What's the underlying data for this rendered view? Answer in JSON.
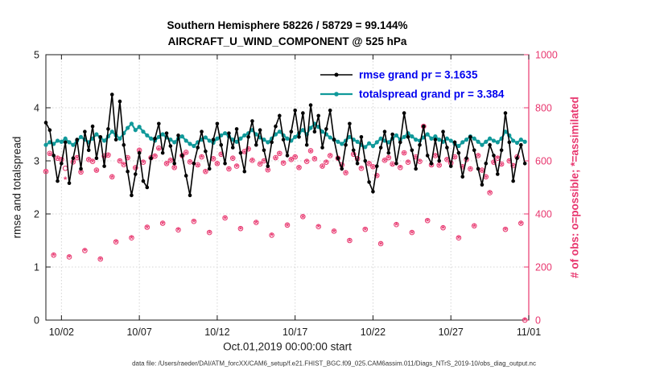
{
  "page": {
    "title_line1": "Southern Hemisphere 58226 / 58729 = 99.144%",
    "title_line2": "AIRCRAFT_U_WIND_COMPONENT @ 525 hPa",
    "xlabel": "Oct.01,2019 00:00:00 start",
    "ylabel_left": "rmse and totalspread",
    "ylabel_right": "# of obs: o=possible; *=assimilated",
    "footer": "data file: /Users/raeder/DAI/ATM_forcXX/CAM6_setup/f.e21.FHIST_BGC.f09_025.CAM6assim.011/Diags_NTrS_2019-10/obs_diag_output.nc"
  },
  "chart_data": {
    "type": "line",
    "title": "Southern Hemisphere 58226 / 58729 = 99.144%",
    "subtitle": "AIRCRAFT_U_WIND_COMPONENT @ 525 hPa",
    "xlabel": "Oct.01,2019 00:00:00 start",
    "ylabel_left": "rmse and totalspread",
    "ylabel_right": "# of obs: o=possible; *=assimilated",
    "x_start_day": 0.0,
    "x_step_days": 0.25,
    "xlim": [
      0,
      31
    ],
    "ylim_left": [
      0,
      5
    ],
    "ylim_right": [
      0,
      1000
    ],
    "grid": true,
    "legend_position": "upper-center-right",
    "xticks": [
      {
        "t": 1,
        "label": "10/02"
      },
      {
        "t": 6,
        "label": "10/07"
      },
      {
        "t": 11,
        "label": "10/12"
      },
      {
        "t": 16,
        "label": "10/17"
      },
      {
        "t": 21,
        "label": "10/22"
      },
      {
        "t": 26,
        "label": "10/27"
      },
      {
        "t": 31,
        "label": "11/01"
      }
    ],
    "yticks_left": [
      0,
      1,
      2,
      3,
      4,
      5
    ],
    "yticks_right": [
      0,
      200,
      400,
      600,
      800,
      1000
    ],
    "legend": [
      {
        "label": "rmse grand pr = 3.1635",
        "color": "#000000"
      },
      {
        "label": "totalspread grand pr = 3.384",
        "color": "#10999a"
      }
    ],
    "colors": {
      "grid": "#d4d4d4",
      "axis": "#1a1a1a",
      "right_axis": "#e8376f",
      "legend_text": "#0000ee",
      "rmse": "#000000",
      "totalspread": "#10999a",
      "obs": "#e8376f"
    },
    "series": [
      {
        "name": "rmse",
        "axis": "left",
        "color": "#000000",
        "marker": "dot",
        "values": [
          3.72,
          3.58,
          3.1,
          2.62,
          2.95,
          3.35,
          2.58,
          3.05,
          3.4,
          2.85,
          3.55,
          3.2,
          3.65,
          3.05,
          3.45,
          2.9,
          3.6,
          4.25,
          3.4,
          4.12,
          3.3,
          2.8,
          2.35,
          2.75,
          3.15,
          2.62,
          2.5,
          3.05,
          3.42,
          3.7,
          3.15,
          3.52,
          3.28,
          2.95,
          3.48,
          3.1,
          2.72,
          2.35,
          2.95,
          3.25,
          3.55,
          3.18,
          2.85,
          3.4,
          3.7,
          3.3,
          2.95,
          3.52,
          3.25,
          3.6,
          3.15,
          2.8,
          3.45,
          3.75,
          3.3,
          3.58,
          3.2,
          2.9,
          3.35,
          3.65,
          3.85,
          3.4,
          3.1,
          3.55,
          3.95,
          3.45,
          3.9,
          3.3,
          4.05,
          3.55,
          3.85,
          3.25,
          3.6,
          3.95,
          3.4,
          3.05,
          2.85,
          3.3,
          3.7,
          3.2,
          2.95,
          3.45,
          3.0,
          2.6,
          2.42,
          2.9,
          3.25,
          3.55,
          3.15,
          3.5,
          2.95,
          3.35,
          3.9,
          3.45,
          3.2,
          2.85,
          3.3,
          3.65,
          3.1,
          2.95,
          3.4,
          3.0,
          3.55,
          3.25,
          2.9,
          3.35,
          3.15,
          2.7,
          3.05,
          3.45,
          3.2,
          2.85,
          2.55,
          2.95,
          3.3,
          3.1,
          2.75,
          3.2,
          3.9,
          3.35,
          2.62,
          3.05,
          3.3,
          2.95
        ]
      },
      {
        "name": "totalspread",
        "axis": "left",
        "color": "#10999a",
        "marker": "dot",
        "values": [
          3.3,
          3.35,
          3.32,
          3.38,
          3.36,
          3.42,
          3.35,
          3.3,
          3.38,
          3.45,
          3.4,
          3.35,
          3.42,
          3.5,
          3.44,
          3.38,
          3.46,
          3.55,
          3.48,
          3.42,
          3.52,
          3.62,
          3.7,
          3.58,
          3.64,
          3.55,
          3.48,
          3.42,
          3.38,
          3.45,
          3.5,
          3.44,
          3.4,
          3.35,
          3.42,
          3.46,
          3.38,
          3.32,
          3.28,
          3.35,
          3.4,
          3.44,
          3.38,
          3.34,
          3.42,
          3.48,
          3.52,
          3.46,
          3.4,
          3.36,
          3.42,
          3.48,
          3.52,
          3.58,
          3.5,
          3.44,
          3.4,
          3.35,
          3.42,
          3.5,
          3.55,
          3.48,
          3.42,
          3.38,
          3.45,
          3.52,
          3.58,
          3.5,
          3.62,
          3.7,
          3.64,
          3.55,
          3.5,
          3.44,
          3.4,
          3.36,
          3.32,
          3.38,
          3.45,
          3.4,
          3.36,
          3.3,
          3.26,
          3.33,
          3.28,
          3.35,
          3.42,
          3.38,
          3.35,
          3.42,
          3.48,
          3.4,
          3.45,
          3.52,
          3.46,
          3.4,
          3.38,
          3.44,
          3.5,
          3.42,
          3.46,
          3.4,
          3.36,
          3.42,
          3.38,
          3.32,
          3.28,
          3.35,
          3.4,
          3.46,
          3.42,
          3.36,
          3.3,
          3.36,
          3.42,
          3.38,
          3.35,
          3.42,
          3.55,
          3.48,
          3.38,
          3.34,
          3.4,
          3.36
        ]
      },
      {
        "name": "possible",
        "axis": "right",
        "color": "#e8376f",
        "marker": "circle",
        "values": [
          560,
          628,
          245,
          610,
          605,
          572,
          238,
          596,
          612,
          558,
          262,
          605,
          598,
          565,
          230,
          618,
          622,
          540,
          295,
          600,
          586,
          612,
          310,
          574,
          640,
          595,
          350,
          612,
          618,
          648,
          365,
          590,
          602,
          575,
          340,
          620,
          632,
          596,
          372,
          585,
          615,
          560,
          330,
          608,
          590,
          625,
          385,
          570,
          610,
          580,
          345,
          635,
          645,
          602,
          368,
          588,
          600,
          566,
          320,
          612,
          628,
          592,
          358,
          605,
          615,
          575,
          390,
          598,
          638,
          608,
          352,
          580,
          595,
          620,
          335,
          610,
          585,
          555,
          300,
          625,
          608,
          572,
          342,
          590,
          578,
          545,
          288,
          602,
          612,
          588,
          360,
          575,
          630,
          595,
          330,
          615,
          598,
          730,
          375,
          585,
          620,
          584,
          348,
          605,
          592,
          615,
          310,
          578,
          605,
          570,
          355,
          620,
          565,
          540,
          480,
          595,
          610,
          588,
          342,
          600,
          582,
          615,
          365,
          0
        ]
      },
      {
        "name": "assimilated",
        "axis": "right",
        "color": "#e8376f",
        "marker": "asterisk",
        "values": [
          557,
          622,
          243,
          606,
          601,
          530,
          236,
          593,
          609,
          554,
          260,
          601,
          595,
          561,
          228,
          612,
          618,
          537,
          292,
          597,
          583,
          607,
          308,
          570,
          636,
          592,
          347,
          609,
          615,
          643,
          362,
          586,
          599,
          571,
          338,
          617,
          628,
          593,
          369,
          581,
          612,
          556,
          328,
          604,
          587,
          621,
          382,
          567,
          606,
          577,
          343,
          630,
          641,
          598,
          365,
          585,
          597,
          562,
          318,
          608,
          624,
          589,
          355,
          601,
          612,
          571,
          387,
          595,
          634,
          605,
          350,
          576,
          592,
          616,
          332,
          607,
          581,
          552,
          297,
          621,
          604,
          569,
          340,
          586,
          575,
          541,
          285,
          599,
          609,
          584,
          357,
          572,
          626,
          592,
          327,
          611,
          595,
          726,
          372,
          581,
          616,
          580,
          345,
          602,
          589,
          611,
          307,
          574,
          602,
          566,
          352,
          616,
          561,
          537,
          477,
          591,
          607,
          584,
          339,
          597,
          579,
          611,
          362,
          0
        ]
      }
    ]
  }
}
